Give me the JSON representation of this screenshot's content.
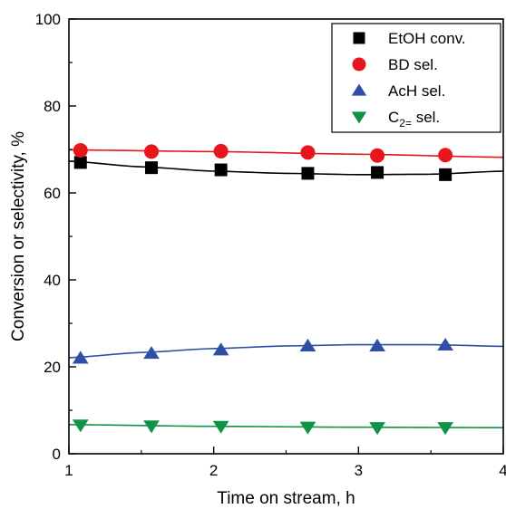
{
  "chart_data": {
    "type": "scatter",
    "title": "",
    "xlabel": "Time on stream, h",
    "ylabel": "Conversion or selectivity, %",
    "xlim": [
      1,
      4
    ],
    "ylim": [
      0,
      100
    ],
    "xticks": [
      1,
      2,
      3,
      4
    ],
    "yticks": [
      0,
      20,
      40,
      60,
      80,
      100
    ],
    "grid": false,
    "legend_position": "top-right",
    "series": [
      {
        "name": "EtOH conv.",
        "marker": "square",
        "color": "#000000",
        "x": [
          1.08,
          1.57,
          2.05,
          2.65,
          3.13,
          3.6
        ],
        "y": [
          67.0,
          65.8,
          65.3,
          64.5,
          64.7,
          64.2
        ],
        "fit": [
          [
            1.0,
            67.3
          ],
          [
            1.5,
            66.0
          ],
          [
            2.0,
            65.0
          ],
          [
            2.5,
            64.5
          ],
          [
            3.0,
            64.2
          ],
          [
            3.5,
            64.3
          ],
          [
            4.0,
            65.0
          ]
        ]
      },
      {
        "name": "BD sel.",
        "marker": "circle",
        "color": "#e8161b",
        "x": [
          1.08,
          1.57,
          2.05,
          2.65,
          3.13,
          3.6
        ],
        "y": [
          69.8,
          69.5,
          69.6,
          69.3,
          68.6,
          68.7
        ],
        "fit": [
          [
            1.0,
            69.9
          ],
          [
            2.0,
            69.5
          ],
          [
            3.0,
            68.9
          ],
          [
            4.0,
            68.2
          ]
        ]
      },
      {
        "name": "AcH sel.",
        "marker": "triangle-up",
        "color": "#2e4fa5",
        "x": [
          1.08,
          1.57,
          2.05,
          2.65,
          3.13,
          3.6
        ],
        "y": [
          22.0,
          23.1,
          23.9,
          24.8,
          24.8,
          25.0
        ],
        "fit": [
          [
            1.0,
            22.1
          ],
          [
            1.5,
            23.3
          ],
          [
            2.0,
            24.2
          ],
          [
            2.5,
            24.8
          ],
          [
            3.0,
            25.1
          ],
          [
            3.5,
            25.1
          ],
          [
            4.0,
            24.7
          ]
        ]
      },
      {
        "name": "C2= sel.",
        "name_main": "C",
        "name_sub": "2=",
        "name_tail": " sel.",
        "marker": "triangle-down",
        "color": "#0f9446",
        "x": [
          1.08,
          1.57,
          2.05,
          2.65,
          3.13,
          3.6
        ],
        "y": [
          6.6,
          6.4,
          6.3,
          6.1,
          6.0,
          6.0
        ],
        "fit": [
          [
            1.0,
            6.7
          ],
          [
            2.0,
            6.3
          ],
          [
            3.0,
            6.1
          ],
          [
            4.0,
            6.0
          ]
        ]
      }
    ]
  }
}
